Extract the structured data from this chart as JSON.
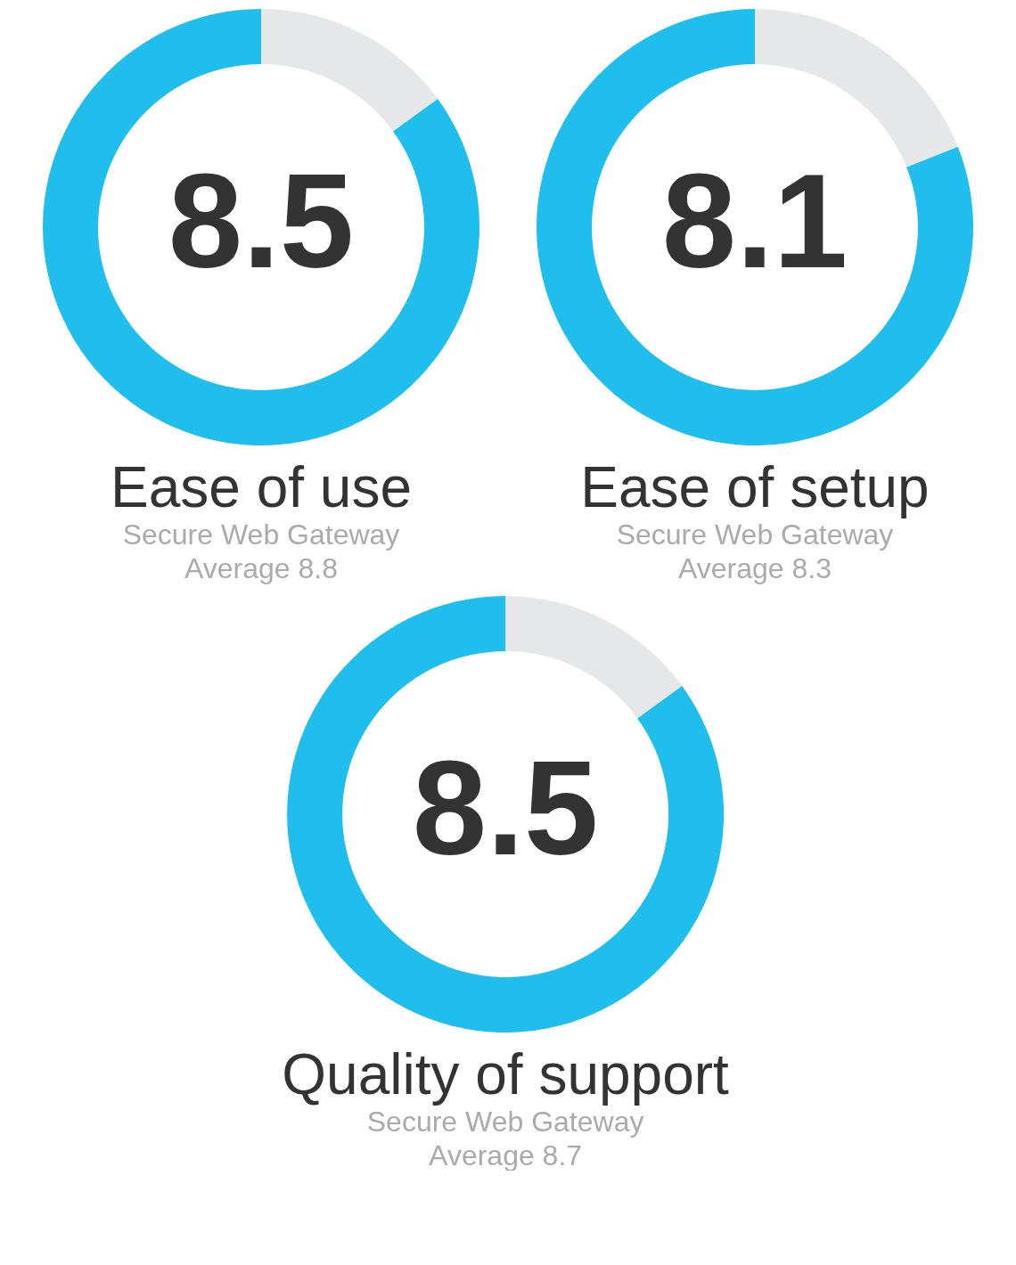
{
  "chart_data": [
    {
      "type": "donut",
      "title": "Ease of use",
      "subtitle": "Secure Web Gateway\nAverage 8.8",
      "categories": [
        null,
        null
      ],
      "values": [
        15,
        85
      ],
      "colors": [
        "#e6e7e8",
        "#1fbeed"
      ],
      "annotations": [
        "8.5"
      ]
    },
    {
      "type": "donut",
      "title": "Ease of setup",
      "subtitle": "Secure Web Gateway\nAverage 8.3",
      "categories": [
        null,
        null
      ],
      "values": [
        19,
        81
      ],
      "colors": [
        "#e6e7e8",
        "#1fbeed"
      ],
      "annotations": [
        "8.1"
      ]
    },
    {
      "type": "donut",
      "title": "Quality of support",
      "subtitle": "Secure Web Gateway\nAverage 8.7",
      "categories": [
        null,
        null
      ],
      "values": [
        15,
        85
      ],
      "colors": [
        "#e6e7e8",
        "#1fbeed"
      ],
      "annotations": [
        "8.5"
      ]
    }
  ]
}
